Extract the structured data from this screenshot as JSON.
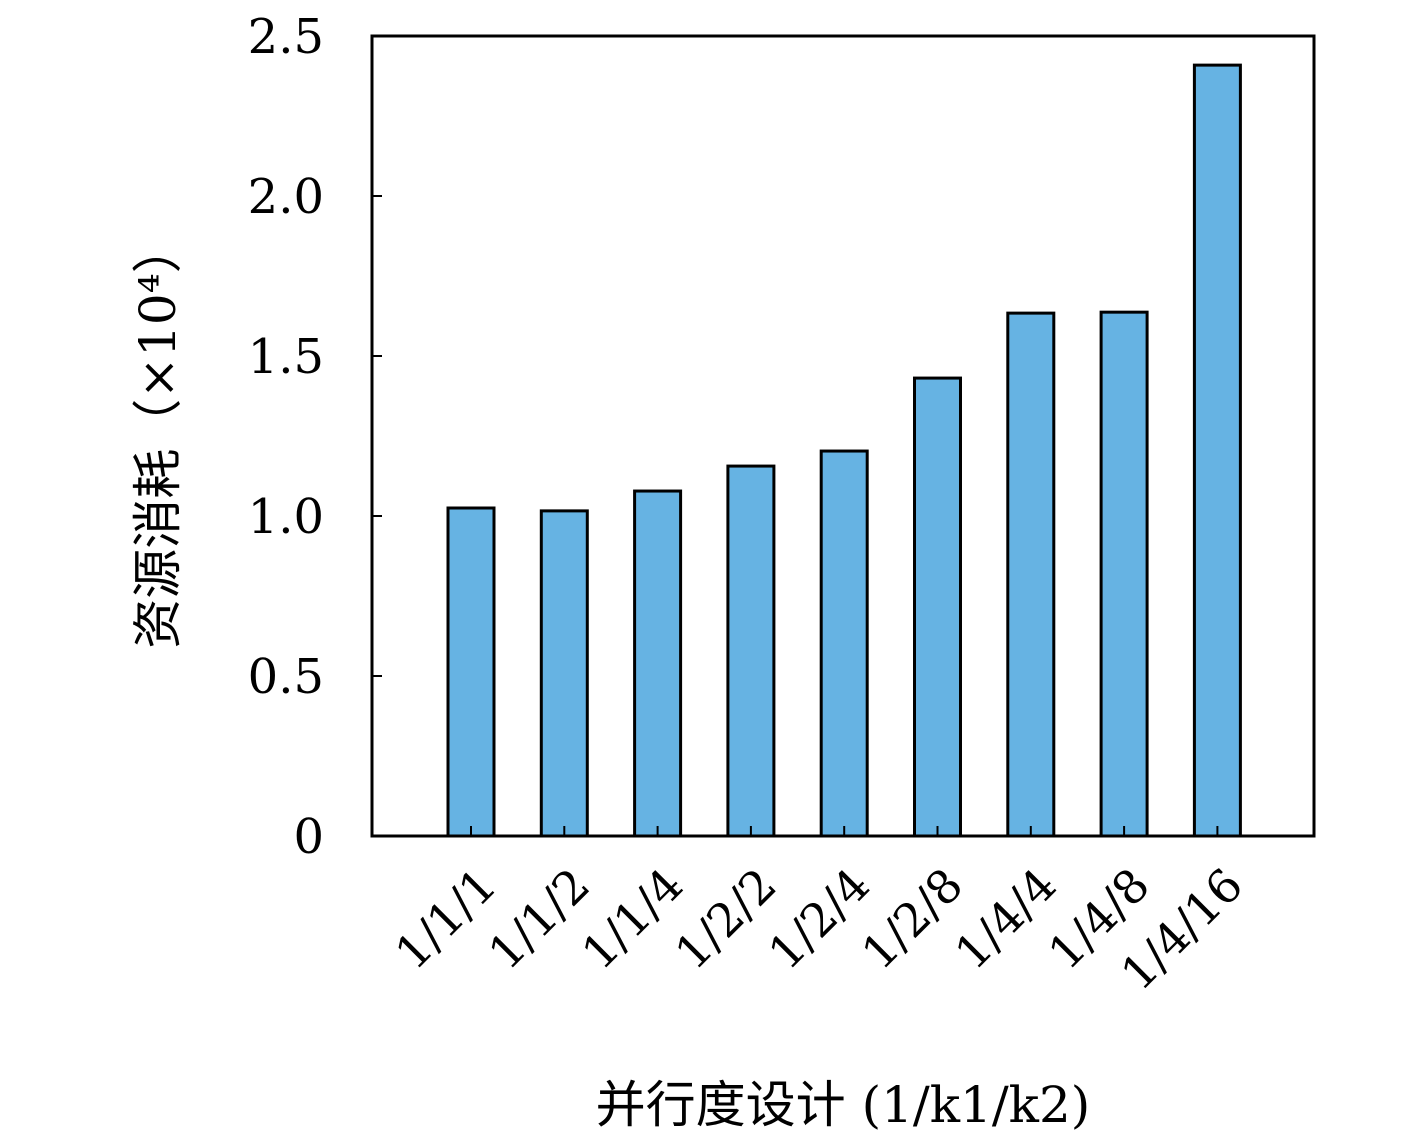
{
  "chart_data": {
    "type": "bar",
    "title": "",
    "xlabel": "并行度设计 (1/k1/k2)",
    "ylabel": "资源消耗（×10⁴）",
    "categories": [
      "1/1/1",
      "1/1/2",
      "1/1/4",
      "1/2/2",
      "1/2/4",
      "1/2/8",
      "1/4/4",
      "1/4/8",
      "1/4/16"
    ],
    "values": [
      1.025,
      1.016,
      1.078,
      1.156,
      1.203,
      1.431,
      1.634,
      1.637,
      2.409
    ],
    "ylim": [
      0,
      2.5
    ],
    "yticks": [
      "0",
      "0.5",
      "1.0",
      "1.5",
      "2.0",
      "2.5"
    ],
    "grid": false,
    "bar_color": "#66b3e3",
    "edge_color": "#000000"
  }
}
